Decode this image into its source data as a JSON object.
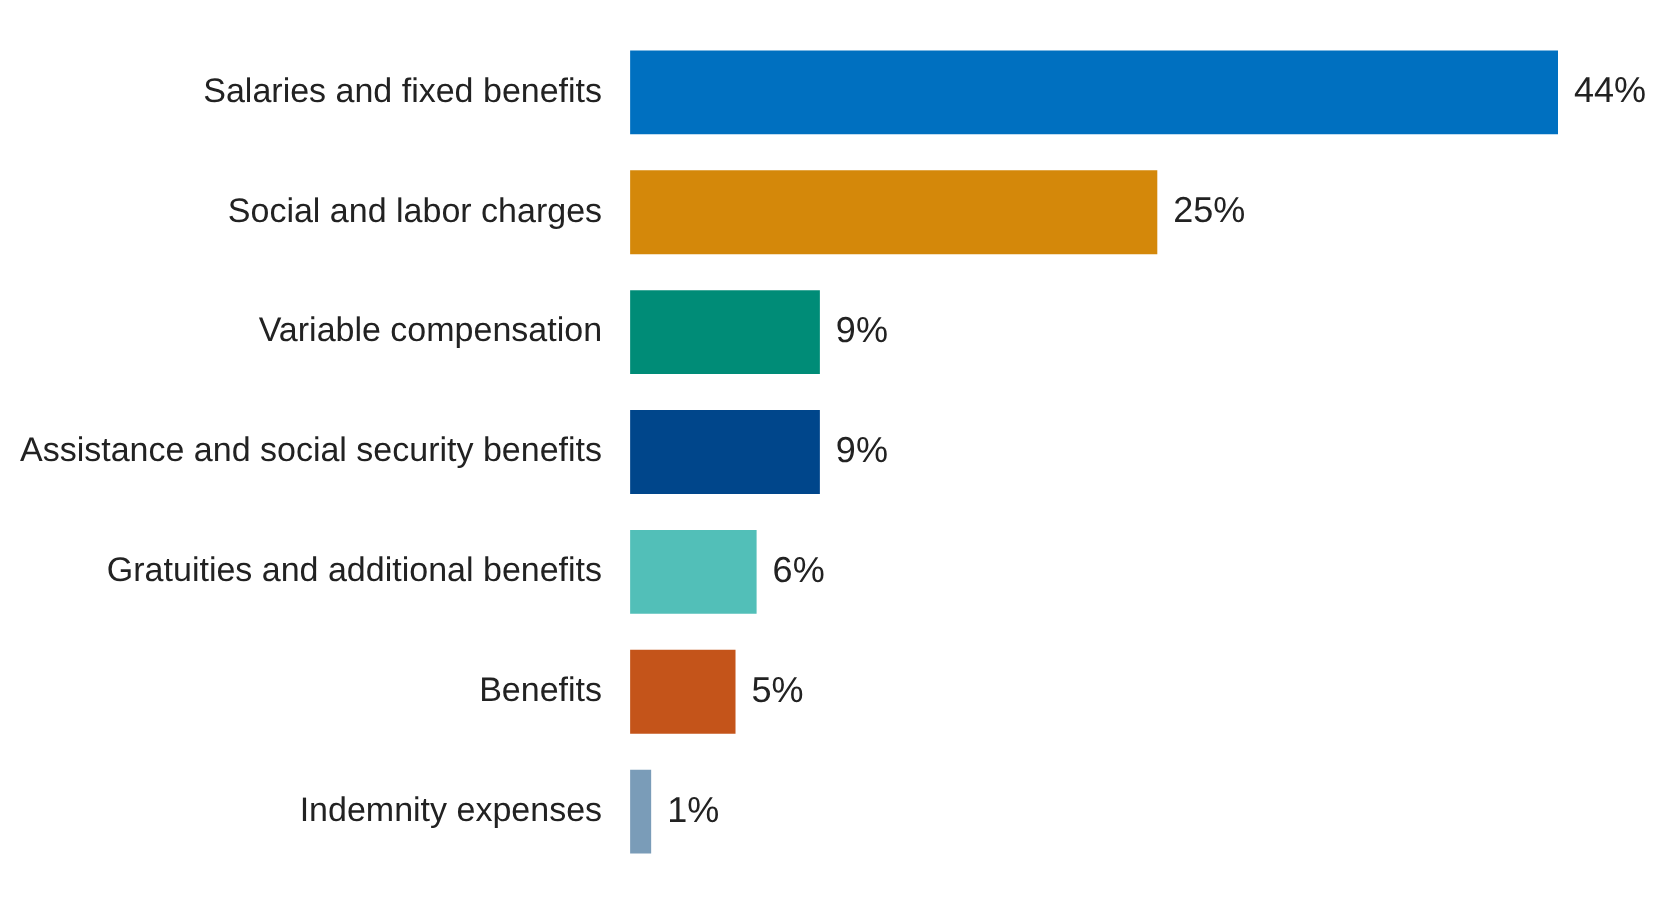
{
  "chart_data": {
    "type": "bar",
    "orientation": "horizontal",
    "categories": [
      "Salaries and fixed benefits",
      "Social and labor charges",
      "Variable compensation",
      "Assistance and social security benefits",
      "Gratuities and additional benefits",
      "Benefits",
      "Indemnity expenses"
    ],
    "values": [
      44,
      25,
      9,
      9,
      6,
      5,
      1
    ],
    "value_labels": [
      "44%",
      "25%",
      "9%",
      "9%",
      "6%",
      "5%",
      "1%"
    ],
    "colors": [
      "#0070c0",
      "#d4880a",
      "#008c77",
      "#00468b",
      "#52bfb8",
      "#c4541a",
      "#7a9cb8"
    ],
    "legend": false
  }
}
